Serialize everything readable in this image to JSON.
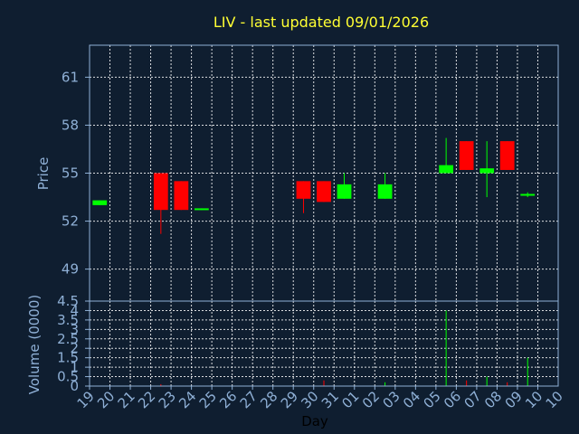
{
  "title": "LIV - last updated 09/01/2026",
  "colors": {
    "background": "#0f1e30",
    "up": "#00ff00",
    "down": "#ff0000",
    "title": "#ffff33",
    "axis_text": "#8fb0d6",
    "grid": "#ffffff"
  },
  "chart_data": [
    {
      "type": "candlestick",
      "ylabel": "Price",
      "ylim": [
        47,
        63
      ],
      "yticks": [
        49,
        52,
        55,
        58,
        61
      ],
      "grid": true,
      "candles": [
        {
          "day": "19",
          "open": 53.0,
          "close": 53.3,
          "high": 53.3,
          "low": 53.0
        },
        {
          "day": "22",
          "open": 55.0,
          "close": 52.7,
          "high": 55.0,
          "low": 51.2
        },
        {
          "day": "23",
          "open": 54.5,
          "close": 52.7,
          "high": 54.5,
          "low": 52.7
        },
        {
          "day": "24",
          "open": 52.7,
          "close": 52.8,
          "high": 52.8,
          "low": 52.7
        },
        {
          "day": "29",
          "open": 54.5,
          "close": 53.4,
          "high": 54.5,
          "low": 52.5
        },
        {
          "day": "30",
          "open": 54.5,
          "close": 53.2,
          "high": 54.5,
          "low": 53.2
        },
        {
          "day": "31",
          "open": 53.4,
          "close": 54.3,
          "high": 55.0,
          "low": 53.4
        },
        {
          "day": "02",
          "open": 53.4,
          "close": 54.3,
          "high": 55.0,
          "low": 53.4
        },
        {
          "day": "05",
          "open": 55.0,
          "close": 55.5,
          "high": 57.2,
          "low": 55.0
        },
        {
          "day": "06",
          "open": 57.0,
          "close": 55.2,
          "high": 57.0,
          "low": 55.2
        },
        {
          "day": "07",
          "open": 55.0,
          "close": 55.3,
          "high": 57.0,
          "low": 53.5
        },
        {
          "day": "08",
          "open": 57.0,
          "close": 55.2,
          "high": 57.0,
          "low": 55.2
        },
        {
          "day": "09",
          "open": 53.6,
          "close": 53.7,
          "high": 53.8,
          "low": 53.5
        }
      ]
    },
    {
      "type": "bar",
      "ylabel": "Volume (0000)",
      "xlabel": "Day",
      "ylim": [
        0,
        4.5
      ],
      "yticks": [
        "0",
        "0.5",
        "1",
        "1.5",
        "2",
        "2.5",
        "3",
        "3.5",
        "4",
        "4.5"
      ],
      "grid": true,
      "categories": [
        "19",
        "20",
        "21",
        "22",
        "23",
        "24",
        "25",
        "26",
        "27",
        "28",
        "29",
        "30",
        "31",
        "01",
        "02",
        "03",
        "04",
        "05",
        "06",
        "07",
        "08",
        "09",
        "10"
      ],
      "bars": [
        {
          "day": "22",
          "value": 0.1,
          "color": "down"
        },
        {
          "day": "30",
          "value": 0.3,
          "color": "down"
        },
        {
          "day": "02",
          "value": 0.2,
          "color": "up"
        },
        {
          "day": "05",
          "value": 4.0,
          "color": "up"
        },
        {
          "day": "06",
          "value": 0.3,
          "color": "down"
        },
        {
          "day": "07",
          "value": 0.5,
          "color": "up"
        },
        {
          "day": "08",
          "value": 0.2,
          "color": "down"
        },
        {
          "day": "09",
          "value": 1.5,
          "color": "up"
        }
      ]
    }
  ]
}
